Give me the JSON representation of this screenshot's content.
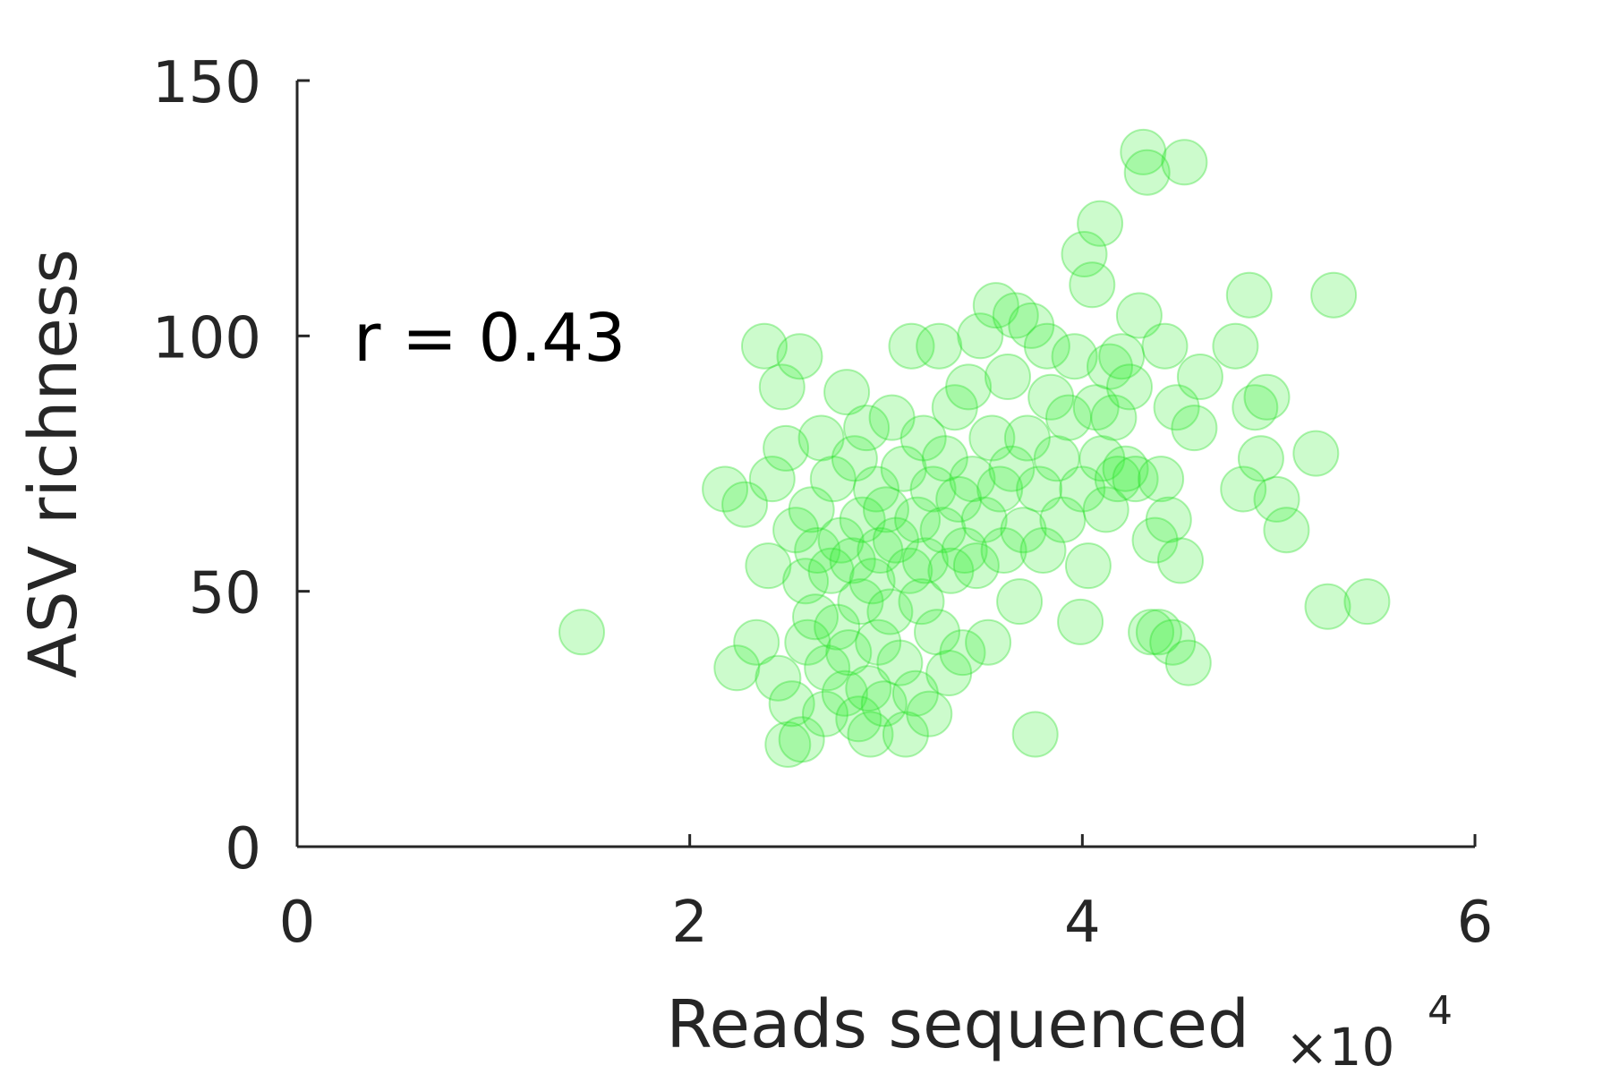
{
  "chart_data": {
    "type": "scatter",
    "xlabel": "Reads sequenced",
    "ylabel": "ASV richness",
    "x_multiplier": "×10",
    "x_multiplier_exponent": "4",
    "annotation": "r = 0.43",
    "xlim": [
      0,
      60000
    ],
    "ylim": [
      0,
      150
    ],
    "xticks": [
      0,
      20000,
      40000,
      60000
    ],
    "xtick_labels": [
      "0",
      "2",
      "4",
      "6"
    ],
    "yticks": [
      0,
      50,
      100,
      150
    ],
    "ytick_labels": [
      "0",
      "50",
      "100",
      "150"
    ],
    "grid": false,
    "marker_color": "#33ee33",
    "marker_edge_color": "#22dd22",
    "marker_alpha": 0.25,
    "points": [
      [
        14500,
        42
      ],
      [
        21800,
        70
      ],
      [
        22400,
        35
      ],
      [
        22800,
        67
      ],
      [
        23800,
        98
      ],
      [
        23400,
        40
      ],
      [
        24000,
        55
      ],
      [
        24200,
        72
      ],
      [
        24500,
        33
      ],
      [
        24700,
        90
      ],
      [
        24900,
        78
      ],
      [
        25000,
        20
      ],
      [
        25200,
        28
      ],
      [
        25400,
        62
      ],
      [
        25600,
        96
      ],
      [
        25700,
        21
      ],
      [
        25900,
        52
      ],
      [
        26000,
        40
      ],
      [
        26200,
        66
      ],
      [
        26400,
        45
      ],
      [
        26500,
        58
      ],
      [
        26700,
        80
      ],
      [
        26900,
        26
      ],
      [
        27000,
        35
      ],
      [
        27200,
        54
      ],
      [
        27300,
        72
      ],
      [
        27500,
        43
      ],
      [
        27700,
        60
      ],
      [
        27900,
        30
      ],
      [
        28000,
        89
      ],
      [
        28100,
        38
      ],
      [
        28300,
        56
      ],
      [
        28400,
        76
      ],
      [
        28600,
        25
      ],
      [
        28700,
        48
      ],
      [
        28800,
        64
      ],
      [
        29000,
        82
      ],
      [
        29100,
        31
      ],
      [
        29200,
        22
      ],
      [
        29300,
        52
      ],
      [
        29500,
        70
      ],
      [
        29600,
        40
      ],
      [
        29700,
        58
      ],
      [
        29900,
        28
      ],
      [
        30000,
        66
      ],
      [
        30200,
        46
      ],
      [
        30300,
        84
      ],
      [
        30500,
        60
      ],
      [
        30700,
        36
      ],
      [
        30900,
        74
      ],
      [
        31000,
        22
      ],
      [
        31200,
        54
      ],
      [
        31300,
        98
      ],
      [
        31500,
        30
      ],
      [
        31600,
        64
      ],
      [
        31800,
        48
      ],
      [
        31900,
        80
      ],
      [
        32000,
        56
      ],
      [
        32200,
        26
      ],
      [
        32400,
        70
      ],
      [
        32600,
        42
      ],
      [
        32700,
        98
      ],
      [
        32900,
        62
      ],
      [
        33000,
        76
      ],
      [
        33200,
        34
      ],
      [
        33300,
        54
      ],
      [
        33500,
        86
      ],
      [
        33700,
        68
      ],
      [
        33900,
        38
      ],
      [
        34000,
        58
      ],
      [
        34200,
        90
      ],
      [
        34400,
        72
      ],
      [
        34600,
        55
      ],
      [
        34800,
        100
      ],
      [
        35000,
        64
      ],
      [
        35200,
        40
      ],
      [
        35400,
        80
      ],
      [
        35600,
        106
      ],
      [
        35800,
        70
      ],
      [
        36000,
        58
      ],
      [
        36200,
        92
      ],
      [
        36400,
        74
      ],
      [
        36600,
        104
      ],
      [
        36800,
        48
      ],
      [
        37000,
        62
      ],
      [
        37200,
        80
      ],
      [
        37400,
        102
      ],
      [
        37600,
        22
      ],
      [
        37800,
        70
      ],
      [
        38000,
        58
      ],
      [
        38200,
        98
      ],
      [
        38400,
        88
      ],
      [
        38700,
        76
      ],
      [
        39000,
        64
      ],
      [
        39300,
        84
      ],
      [
        39600,
        96
      ],
      [
        39900,
        44
      ],
      [
        40000,
        70
      ],
      [
        40100,
        116
      ],
      [
        40300,
        55
      ],
      [
        40500,
        110
      ],
      [
        40700,
        86
      ],
      [
        40900,
        122
      ],
      [
        41000,
        76
      ],
      [
        41200,
        66
      ],
      [
        41400,
        94
      ],
      [
        41600,
        84
      ],
      [
        41800,
        72
      ],
      [
        42000,
        96
      ],
      [
        42200,
        74
      ],
      [
        42400,
        90
      ],
      [
        42700,
        72
      ],
      [
        42900,
        104
      ],
      [
        43100,
        136
      ],
      [
        43300,
        132
      ],
      [
        43500,
        42
      ],
      [
        43700,
        60
      ],
      [
        43900,
        42
      ],
      [
        44000,
        72
      ],
      [
        44200,
        98
      ],
      [
        44400,
        64
      ],
      [
        44600,
        40
      ],
      [
        44800,
        86
      ],
      [
        45000,
        56
      ],
      [
        45200,
        134
      ],
      [
        45400,
        36
      ],
      [
        45700,
        82
      ],
      [
        46000,
        92
      ],
      [
        47800,
        98
      ],
      [
        48200,
        70
      ],
      [
        48500,
        108
      ],
      [
        48800,
        86
      ],
      [
        49100,
        76
      ],
      [
        49400,
        88
      ],
      [
        49900,
        68
      ],
      [
        50400,
        62
      ],
      [
        51900,
        77
      ],
      [
        52500,
        47
      ],
      [
        52800,
        108
      ],
      [
        54500,
        48
      ]
    ]
  }
}
